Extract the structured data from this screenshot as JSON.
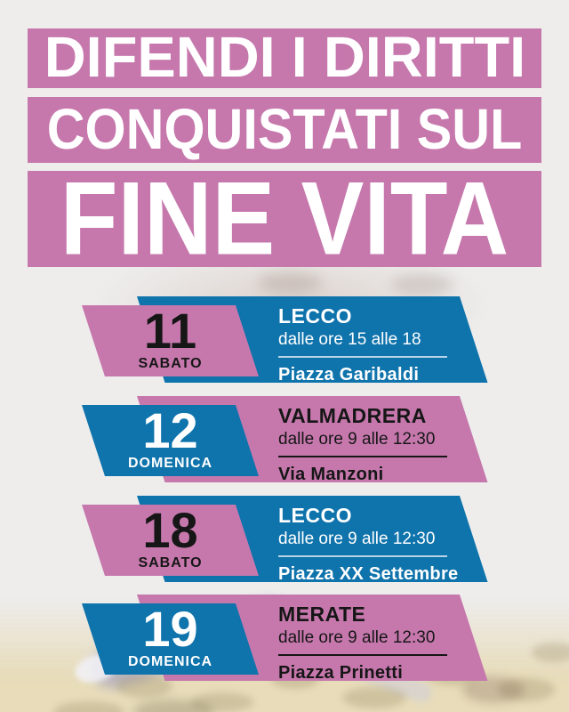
{
  "poster": {
    "background_color": "#eeedec",
    "accent_pink": "#c678ad",
    "accent_blue": "#0f73ac",
    "text_dark": "#161616",
    "text_light": "#ffffff",
    "title_lines": [
      "DIFENDI I DIRITTI",
      "CONQUISTATI SUL",
      "FINE VITA"
    ],
    "events": [
      {
        "day": "11",
        "weekday": "SABATO",
        "city": "LECCO",
        "time": "dalle ore 15 alle 18",
        "place": "Piazza Garibaldi"
      },
      {
        "day": "12",
        "weekday": "DOMENICA",
        "city": "VALMADRERA",
        "time": "dalle ore 9 alle 12:30",
        "place": "Via Manzoni"
      },
      {
        "day": "18",
        "weekday": "SABATO",
        "city": "LECCO",
        "time": "dalle ore 9 alle 12:30",
        "place": "Piazza XX Settembre"
      },
      {
        "day": "19",
        "weekday": "DOMENICA",
        "city": "MERATE",
        "time": "dalle ore 9 alle 12:30",
        "place": "Piazza Prinetti"
      }
    ]
  }
}
